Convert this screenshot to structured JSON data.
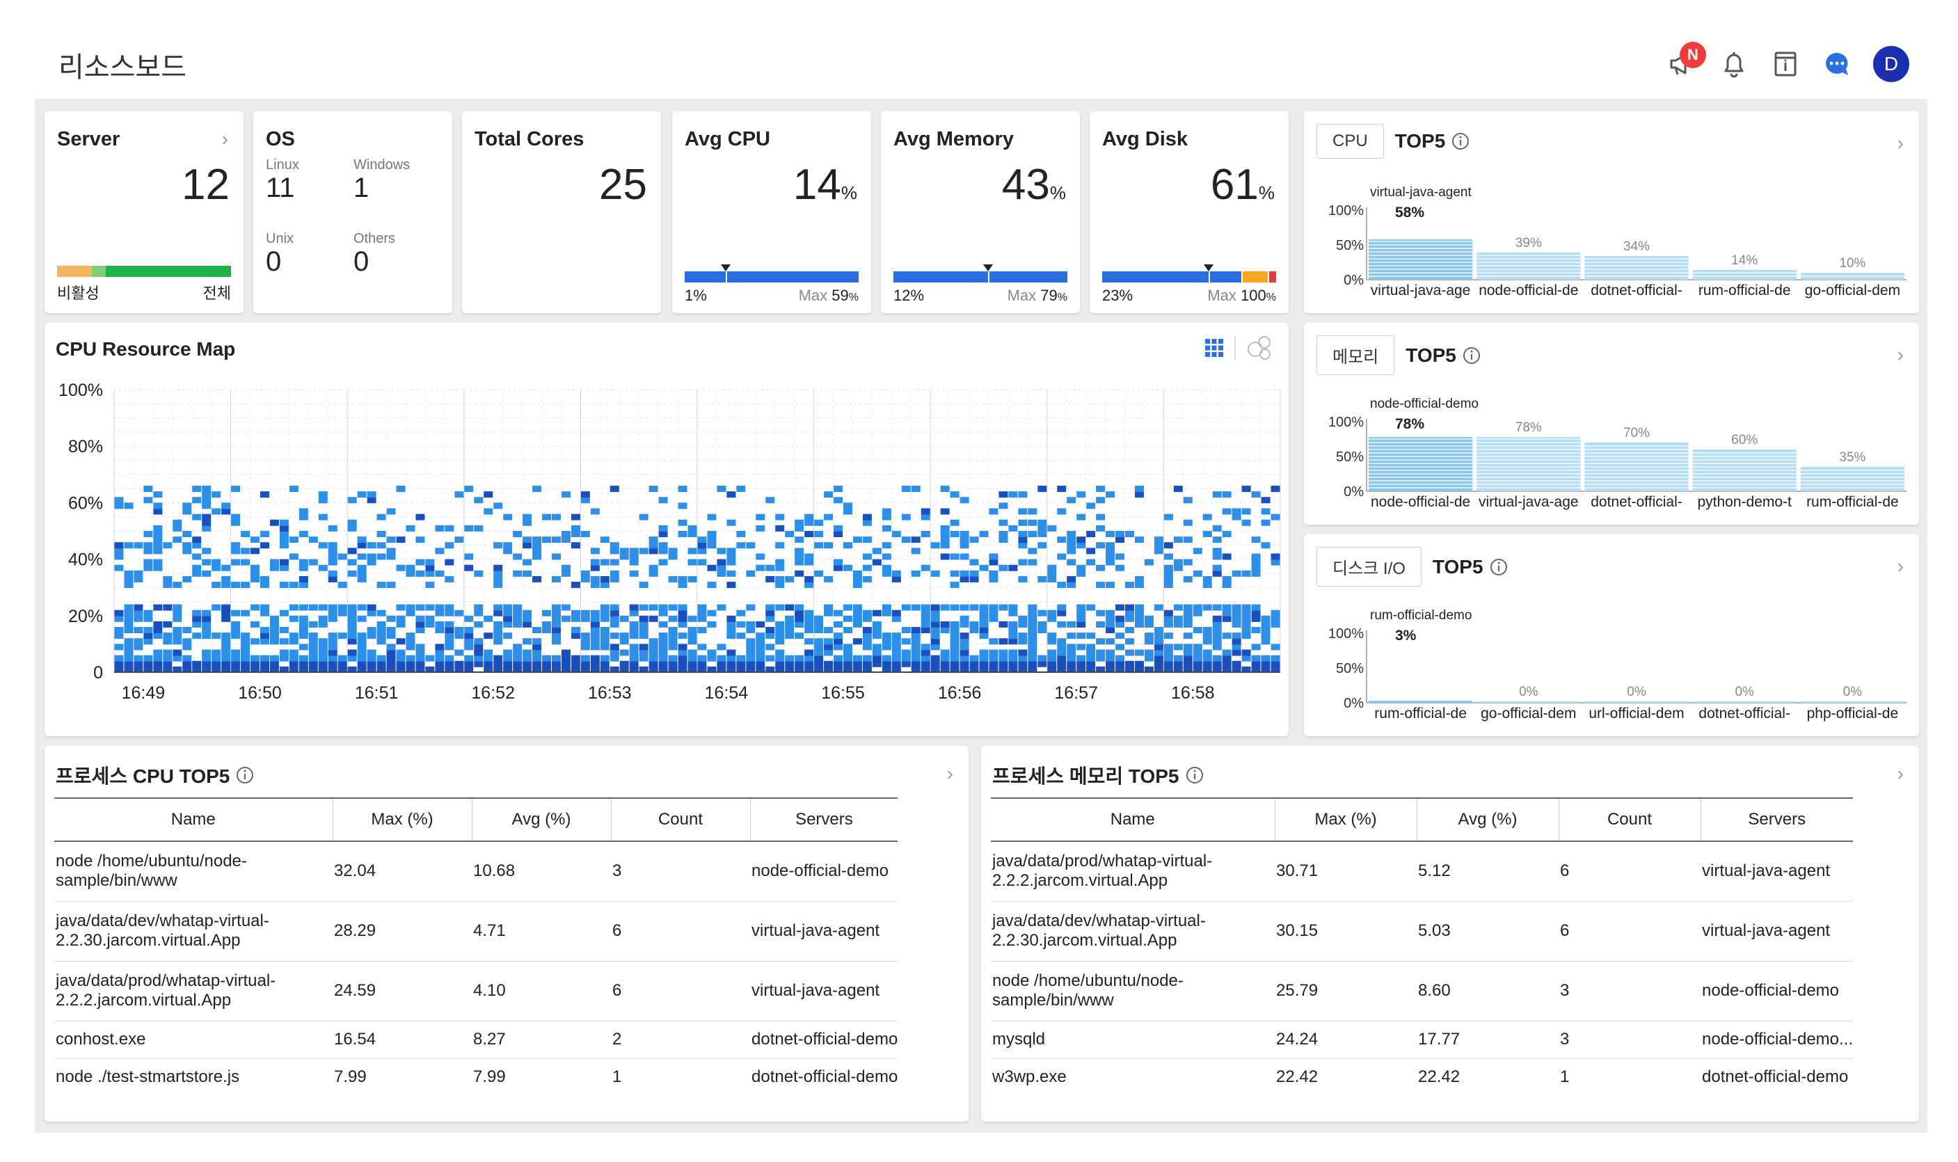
{
  "page": {
    "title": "리소스보드"
  },
  "header_icons": {
    "notice_badge": "N",
    "avatar_initial": "D"
  },
  "colors": {
    "primary": "#2b6fe0",
    "heat_light": "#2d8fe8",
    "heat_dark": "#1a4fc0",
    "orange": "#f5a623",
    "green": "#1eb34a",
    "red": "#e23b3b",
    "top5_bar": "#9fd0f0"
  },
  "server": {
    "title": "Server",
    "value": "12",
    "left_label": "비활성",
    "right_label": "전체",
    "inactive_fraction": 0.2,
    "warn_fraction": 0.08
  },
  "os": {
    "title": "OS",
    "items": [
      {
        "label": "Linux",
        "value": "11"
      },
      {
        "label": "Windows",
        "value": "1"
      },
      {
        "label": "Unix",
        "value": "0"
      },
      {
        "label": "Others",
        "value": "0"
      }
    ]
  },
  "total_cores": {
    "title": "Total Cores",
    "value": "25"
  },
  "avg_cpu": {
    "title": "Avg CPU",
    "value": "14",
    "unit": "%",
    "min_label": "1%",
    "max_prefix": "Max",
    "max_value": "59",
    "max_unit": "%",
    "min": 1,
    "avg": 14,
    "max": 59
  },
  "avg_memory": {
    "title": "Avg Memory",
    "value": "43",
    "unit": "%",
    "min_label": "12%",
    "max_prefix": "Max",
    "max_value": "79",
    "max_unit": "%",
    "min": 12,
    "avg": 43,
    "max": 79
  },
  "avg_disk": {
    "title": "Avg Disk",
    "value": "61",
    "unit": "%",
    "min_label": "23%",
    "max_prefix": "Max",
    "max_value": "100",
    "max_unit": "%",
    "min": 23,
    "avg": 61,
    "max": 100
  },
  "cpu_top5": {
    "pill": "CPU",
    "title": "TOP5",
    "y_ticks": [
      "100%",
      "50%",
      "0%"
    ],
    "top_name": "virtual-java-agent",
    "top_value": "58%",
    "items": [
      {
        "label": "virtual-java-age",
        "pct_label": "58%",
        "value": 58
      },
      {
        "label": "node-official-de",
        "pct_label": "39%",
        "value": 39
      },
      {
        "label": "dotnet-official-",
        "pct_label": "34%",
        "value": 34
      },
      {
        "label": "rum-official-de",
        "pct_label": "14%",
        "value": 14
      },
      {
        "label": "go-official-dem",
        "pct_label": "10%",
        "value": 10
      }
    ]
  },
  "mem_top5": {
    "pill": "메모리",
    "title": "TOP5",
    "y_ticks": [
      "100%",
      "50%",
      "0%"
    ],
    "top_name": "node-official-demo",
    "top_value": "78%",
    "items": [
      {
        "label": "node-official-de",
        "pct_label": "78%",
        "value": 78
      },
      {
        "label": "virtual-java-age",
        "pct_label": "78%",
        "value": 78
      },
      {
        "label": "dotnet-official-",
        "pct_label": "70%",
        "value": 70
      },
      {
        "label": "python-demo-t",
        "pct_label": "60%",
        "value": 60
      },
      {
        "label": "rum-official-de",
        "pct_label": "35%",
        "value": 35
      }
    ]
  },
  "disk_top5": {
    "pill": "디스크 I/O",
    "title": "TOP5",
    "y_ticks": [
      "100%",
      "50%",
      "0%"
    ],
    "top_name": "rum-official-demo",
    "top_value": "3%",
    "items": [
      {
        "label": "rum-official-de",
        "pct_label": "3%",
        "value": 3
      },
      {
        "label": "go-official-dem",
        "pct_label": "0%",
        "value": 0
      },
      {
        "label": "url-official-dem",
        "pct_label": "0%",
        "value": 0
      },
      {
        "label": "dotnet-official-",
        "pct_label": "0%",
        "value": 0
      },
      {
        "label": "php-official-de",
        "pct_label": "0%",
        "value": 0
      }
    ]
  },
  "chart_data": {
    "type": "heatmap",
    "title": "CPU Resource Map",
    "y_ticks": [
      "100%",
      "80%",
      "60%",
      "40%",
      "20%",
      "0"
    ],
    "x_ticks": [
      "16:49",
      "16:50",
      "16:51",
      "16:52",
      "16:53",
      "16:54",
      "16:55",
      "16:56",
      "16:57",
      "16:58"
    ],
    "ylim": [
      0,
      100
    ],
    "grid": true
  },
  "proc_cpu": {
    "title": "프로세스 CPU TOP5",
    "columns": [
      "Name",
      "Max (%)",
      "Avg (%)",
      "Count",
      "Servers"
    ],
    "rows": [
      {
        "name": "node /home/ubuntu/node-sample/bin/www",
        "max": "32.04",
        "avg": "10.68",
        "count": "3",
        "servers": "node-official-demo"
      },
      {
        "name": "java/data/dev/whatap-virtual-2.2.30.jarcom.virtual.App",
        "max": "28.29",
        "avg": "4.71",
        "count": "6",
        "servers": "virtual-java-agent"
      },
      {
        "name": "java/data/prod/whatap-virtual-2.2.2.jarcom.virtual.App",
        "max": "24.59",
        "avg": "4.10",
        "count": "6",
        "servers": "virtual-java-agent"
      },
      {
        "name": "conhost.exe",
        "max": "16.54",
        "avg": "8.27",
        "count": "2",
        "servers": "dotnet-official-demo"
      },
      {
        "name": "node ./test-stmartstore.js",
        "max": "7.99",
        "avg": "7.99",
        "count": "1",
        "servers": "dotnet-official-demo"
      }
    ]
  },
  "proc_mem": {
    "title": "프로세스 메모리 TOP5",
    "columns": [
      "Name",
      "Max (%)",
      "Avg (%)",
      "Count",
      "Servers"
    ],
    "rows": [
      {
        "name": "java/data/prod/whatap-virtual-2.2.2.jarcom.virtual.App",
        "max": "30.71",
        "avg": "5.12",
        "count": "6",
        "servers": "virtual-java-agent"
      },
      {
        "name": "java/data/dev/whatap-virtual-2.2.30.jarcom.virtual.App",
        "max": "30.15",
        "avg": "5.03",
        "count": "6",
        "servers": "virtual-java-agent"
      },
      {
        "name": "node /home/ubuntu/node-sample/bin/www",
        "max": "25.79",
        "avg": "8.60",
        "count": "3",
        "servers": "node-official-demo"
      },
      {
        "name": "mysqld",
        "max": "24.24",
        "avg": "17.77",
        "count": "3",
        "servers": "node-official-demo..."
      },
      {
        "name": "w3wp.exe",
        "max": "22.42",
        "avg": "22.42",
        "count": "1",
        "servers": "dotnet-official-demo"
      }
    ]
  }
}
